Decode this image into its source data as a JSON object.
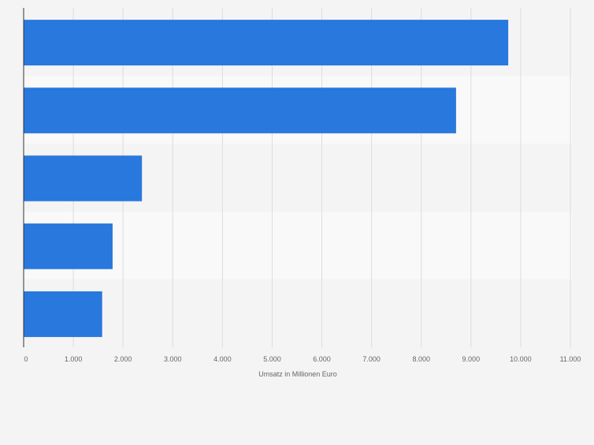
{
  "chart_data": {
    "type": "bar",
    "orientation": "horizontal",
    "categories": [
      "",
      "",
      "",
      "",
      ""
    ],
    "values": [
      9750,
      8700,
      2380,
      1790,
      1580
    ],
    "xlabel": "Umsatz in Millionen Euro",
    "ylabel": "",
    "xlim": [
      0,
      11000
    ],
    "xticks": [
      0,
      1000,
      2000,
      3000,
      4000,
      5000,
      6000,
      7000,
      8000,
      9000,
      10000,
      11000
    ],
    "xtick_labels": [
      "0",
      "1.000",
      "2.000",
      "3.000",
      "4.000",
      "5.000",
      "6.000",
      "7.000",
      "8.000",
      "9.000",
      "10.000",
      "11.000"
    ],
    "grid": true,
    "bar_color": "#2878dd",
    "band_colors": [
      "#f4f4f4",
      "#f9f9f9"
    ],
    "grid_color": "#dcdcdc",
    "axis_color": "#333333",
    "tick_label_color": "#666666"
  }
}
